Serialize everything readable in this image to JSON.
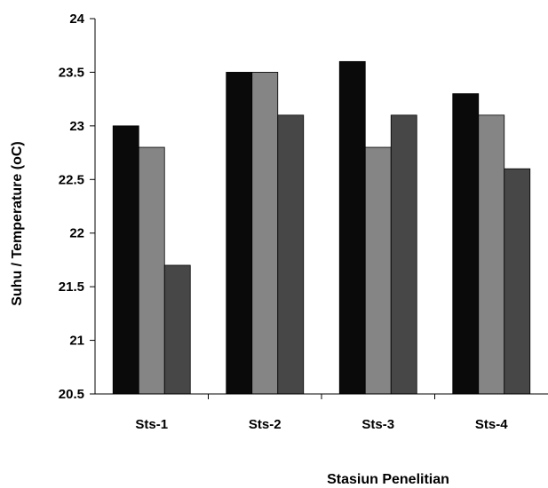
{
  "chart_data": {
    "type": "bar",
    "title": "",
    "xlabel": "Stasiun Penelitian",
    "ylabel": "Suhu / Temperature (oC)",
    "categories": [
      "Sts-1",
      "Sts-2",
      "Sts-3",
      "Sts-4"
    ],
    "ylim": [
      20.5,
      24
    ],
    "yticks": [
      "20.5",
      "21",
      "21.5",
      "22",
      "22.5",
      "23",
      "23.5",
      "24"
    ],
    "grid": false,
    "legend": "none",
    "series": [
      {
        "color": "#0a0a0a",
        "values": [
          23.0,
          23.5,
          23.6,
          23.3
        ]
      },
      {
        "color": "#858585",
        "values": [
          22.8,
          23.5,
          22.8,
          23.1
        ]
      },
      {
        "color": "#474747",
        "values": [
          21.7,
          23.1,
          23.1,
          22.6
        ]
      }
    ]
  }
}
